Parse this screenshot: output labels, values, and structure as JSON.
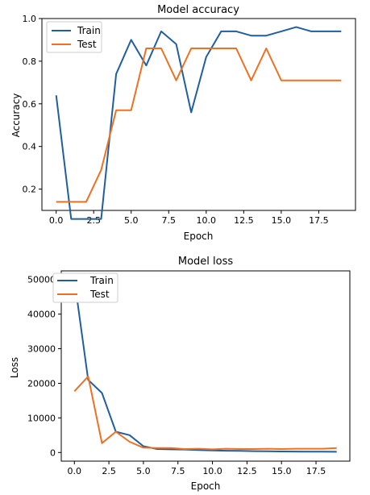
{
  "chart_data": [
    {
      "type": "line",
      "title": "Model accuracy",
      "xlabel": "Epoch",
      "ylabel": "Accuracy",
      "x": [
        0,
        1,
        2,
        3,
        4,
        5,
        6,
        7,
        8,
        9,
        10,
        11,
        12,
        13,
        14,
        15,
        16,
        17,
        18,
        19
      ],
      "xlim": [
        -0.95,
        19.95
      ],
      "ylim": [
        0.1,
        1.0
      ],
      "xticks": [
        0.0,
        2.5,
        5.0,
        7.5,
        10.0,
        12.5,
        15.0,
        17.5
      ],
      "xtick_labels": [
        "0.0",
        "2.5",
        "5.0",
        "7.5",
        "10.0",
        "12.5",
        "15.0",
        "17.5"
      ],
      "yticks": [
        0.2,
        0.4,
        0.6,
        0.8,
        1.0
      ],
      "ytick_labels": [
        "0.2",
        "0.4",
        "0.6",
        "0.8",
        "1.0"
      ],
      "legend_placement": "upper-left",
      "grid": false,
      "series": [
        {
          "name": "Train",
          "color": "#1f5fa0",
          "values": [
            0.64,
            0.06,
            0.06,
            0.06,
            0.74,
            0.9,
            0.78,
            0.94,
            0.88,
            0.56,
            0.82,
            0.94,
            0.94,
            0.92,
            0.92,
            0.94,
            0.96,
            0.94,
            0.94,
            0.94
          ]
        },
        {
          "name": "Test",
          "color": "#f07020",
          "values": [
            0.14,
            0.14,
            0.14,
            0.29,
            0.57,
            0.57,
            0.86,
            0.86,
            0.71,
            0.86,
            0.86,
            0.86,
            0.86,
            0.71,
            0.86,
            0.71,
            0.71,
            0.71,
            0.71,
            0.71
          ]
        }
      ]
    },
    {
      "type": "line",
      "title": "Model loss",
      "xlabel": "Epoch",
      "ylabel": "Loss",
      "x": [
        0,
        1,
        2,
        3,
        4,
        5,
        6,
        7,
        8,
        9,
        10,
        11,
        12,
        13,
        14,
        15,
        16,
        17,
        18,
        19
      ],
      "xlim": [
        -0.95,
        19.95
      ],
      "ylim": [
        -2500,
        52500
      ],
      "xticks": [
        0.0,
        2.5,
        5.0,
        7.5,
        10.0,
        12.5,
        15.0,
        17.5
      ],
      "xtick_labels": [
        "0.0",
        "2.5",
        "5.0",
        "7.5",
        "10.0",
        "12.5",
        "15.0",
        "17.5"
      ],
      "yticks": [
        0,
        10000,
        20000,
        30000,
        40000,
        50000
      ],
      "ytick_labels": [
        "0",
        "10000",
        "20000",
        "30000",
        "40000",
        "50000"
      ],
      "legend_placement": "upper-left",
      "grid": false,
      "series": [
        {
          "name": "Train",
          "color": "#1f5fa0",
          "values": [
            50000,
            21000,
            17200,
            6000,
            5000,
            1800,
            1000,
            900,
            850,
            700,
            600,
            500,
            450,
            400,
            350,
            300,
            280,
            250,
            220,
            200
          ]
        },
        {
          "name": "Test",
          "color": "#f07020",
          "values": [
            17700,
            22000,
            2700,
            6000,
            3100,
            1400,
            1300,
            1300,
            1000,
            1100,
            900,
            1100,
            1000,
            1000,
            1100,
            1000,
            1100,
            1100,
            1100,
            1300
          ]
        }
      ]
    }
  ]
}
